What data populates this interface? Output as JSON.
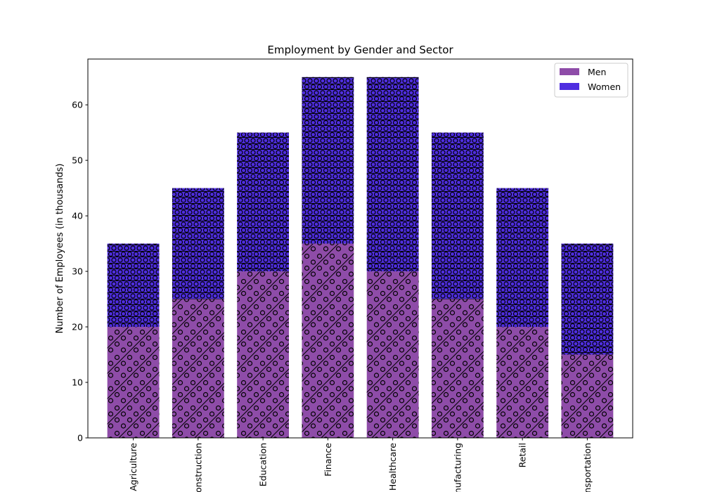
{
  "chart_data": {
    "type": "bar",
    "stacked": true,
    "title": "Employment by Gender and Sector",
    "xlabel": "",
    "ylabel": "Number of Employees (in thousands)",
    "ylim": [
      0,
      68.25
    ],
    "yticks": [
      0,
      10,
      20,
      30,
      40,
      50,
      60
    ],
    "categories": [
      "Agriculture",
      "Construction",
      "Education",
      "Finance",
      "Healthcare",
      "Manufacturing",
      "Retail",
      "Transportation"
    ],
    "series": [
      {
        "name": "Men",
        "color": "#8e4ca8",
        "hatch": "diagonal-lines-and-circles",
        "values": [
          20,
          25,
          30,
          35,
          30,
          25,
          20,
          15
        ]
      },
      {
        "name": "Women",
        "color": "#4f2ee0",
        "hatch": "horizontal-lines-and-circles",
        "values": [
          15,
          20,
          25,
          30,
          35,
          30,
          25,
          20
        ]
      }
    ],
    "legend_position": "top-right",
    "grid": false,
    "x_tick_rotation": 90
  }
}
